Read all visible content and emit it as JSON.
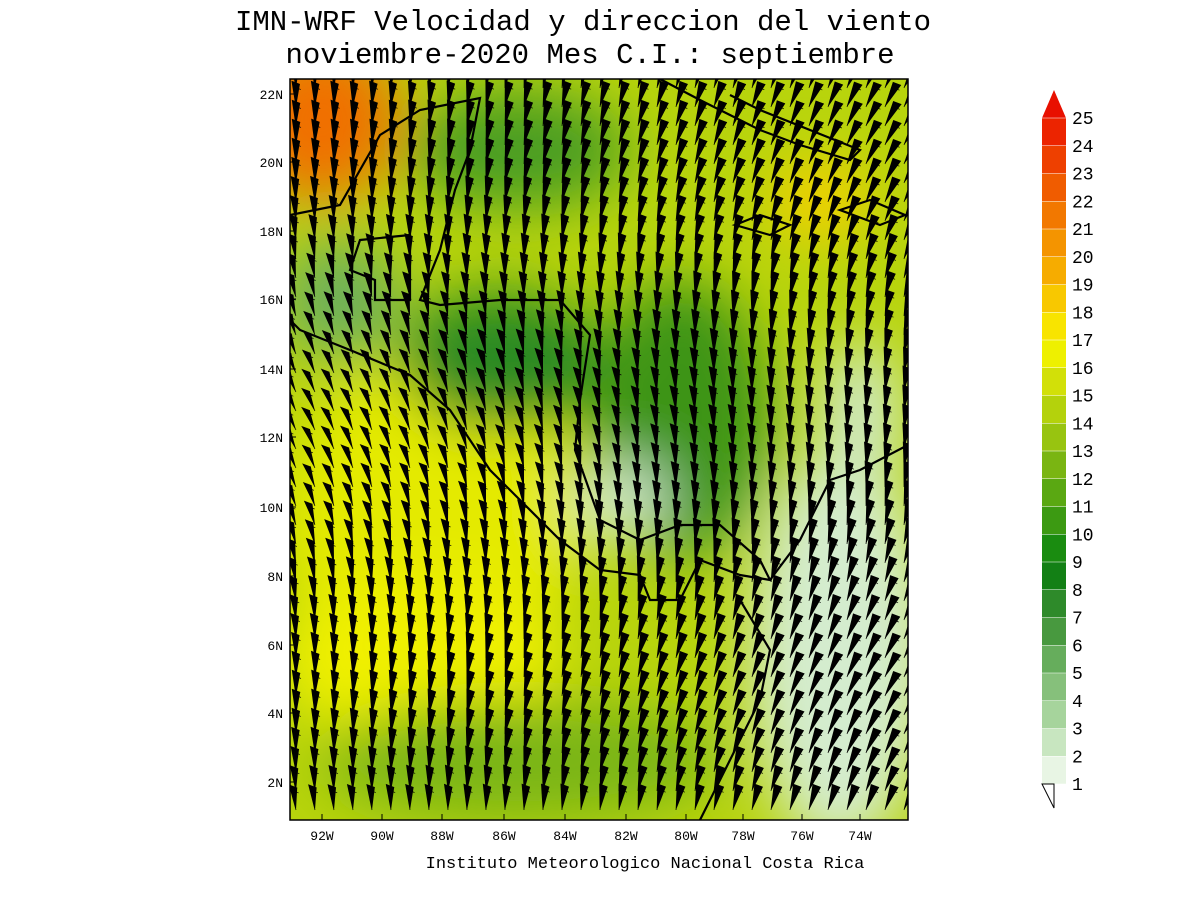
{
  "title": [
    "IMN-WRF Velocidad y direccion del viento",
    "noviembre-2020 Mes C.I.: septiembre"
  ],
  "lat_labels": [
    "22N",
    "20N",
    "18N",
    "16N",
    "14N",
    "12N",
    "10N",
    "8N",
    "6N",
    "4N",
    "2N"
  ],
  "lon_labels": [
    "92W",
    "90W",
    "88W",
    "86W",
    "84W",
    "82W",
    "80W",
    "78W",
    "76W",
    "74W"
  ],
  "credit": "Instituto Meteorologico Nacional Costa Rica",
  "colorbar": {
    "levels": [
      1,
      2,
      3,
      4,
      5,
      6,
      7,
      8,
      9,
      10,
      11,
      12,
      13,
      14,
      15,
      16,
      17,
      18,
      19,
      20,
      21,
      22,
      23,
      24,
      25
    ],
    "colors": [
      "#e8f5e4",
      "#c8e6c0",
      "#a6d49c",
      "#86c07b",
      "#66ad5c",
      "#48993f",
      "#2e8a2a",
      "#138015",
      "#1a8c10",
      "#3c9a12",
      "#5aa812",
      "#7ab512",
      "#98c410",
      "#b4d20c",
      "#d2e008",
      "#eef000",
      "#f8e400",
      "#f8c800",
      "#f6ac00",
      "#f49400",
      "#f27800",
      "#f05c00",
      "#ee4000",
      "#ec2400",
      "#e81000"
    ]
  }
}
